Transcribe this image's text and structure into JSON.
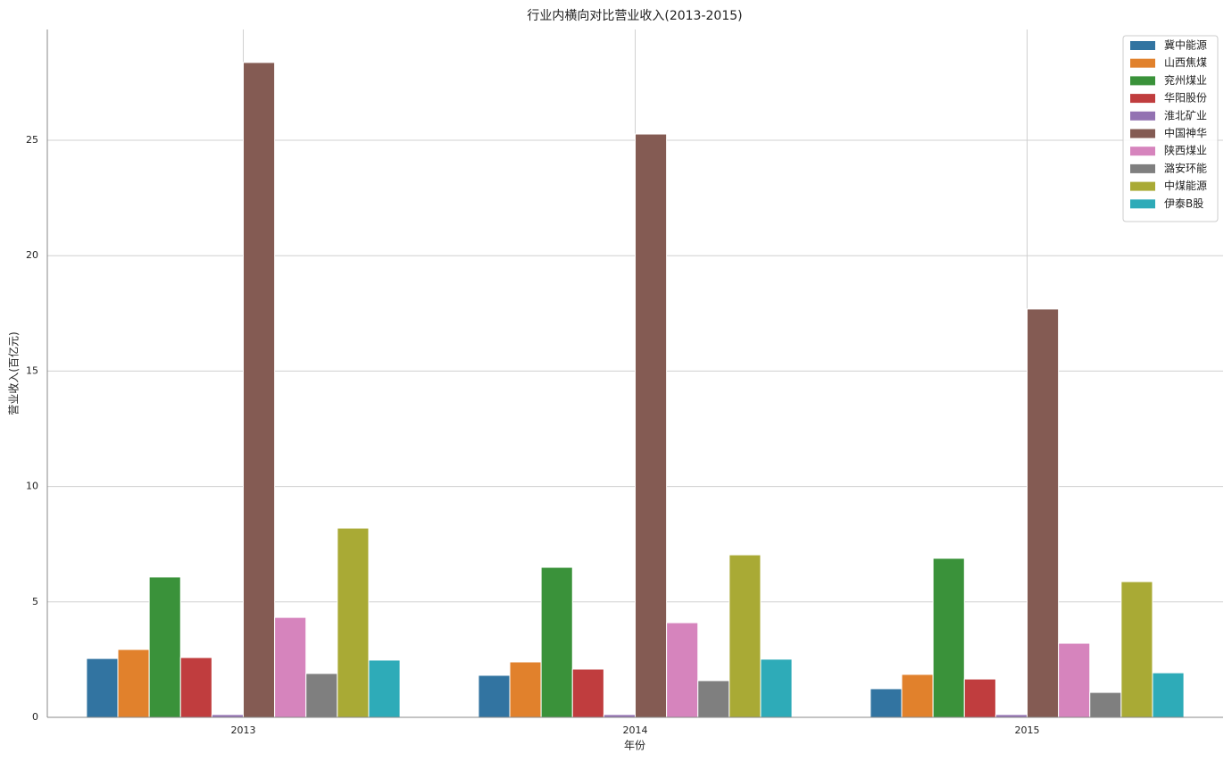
{
  "chart_data": {
    "type": "bar",
    "title": "行业内横向对比营业收入(2013-2015)",
    "x_label": "年份",
    "y_label": "营业收入(百亿元)",
    "categories": [
      "2013",
      "2014",
      "2015"
    ],
    "series": [
      {
        "name": "冀中能源",
        "color": "#3274a1",
        "values": [
          2.55,
          1.82,
          1.24
        ]
      },
      {
        "name": "山西焦煤",
        "color": "#e1812c",
        "values": [
          2.94,
          2.4,
          1.86
        ]
      },
      {
        "name": "兖州煤业",
        "color": "#3a923a",
        "values": [
          6.08,
          6.5,
          6.89
        ]
      },
      {
        "name": "华阳股份",
        "color": "#c03d3e",
        "values": [
          2.59,
          2.09,
          1.66
        ]
      },
      {
        "name": "淮北矿业",
        "color": "#9372b2",
        "values": [
          0.12,
          0.12,
          0.12
        ]
      },
      {
        "name": "中国神华",
        "color": "#845b53",
        "values": [
          28.37,
          25.27,
          17.69
        ]
      },
      {
        "name": "陕西煤业",
        "color": "#d684bd",
        "values": [
          4.33,
          4.1,
          3.21
        ]
      },
      {
        "name": "潞安环能",
        "color": "#7f7f7f",
        "values": [
          1.9,
          1.59,
          1.08
        ]
      },
      {
        "name": "中煤能源",
        "color": "#a9aa35",
        "values": [
          8.2,
          7.04,
          5.88
        ]
      },
      {
        "name": "伊泰B股",
        "color": "#2eabb8",
        "values": [
          2.48,
          2.52,
          1.93
        ]
      }
    ],
    "ylim": [
      0,
      29.8
    ],
    "yticks": [
      0,
      5,
      10,
      15,
      20,
      25
    ],
    "grid": true,
    "legend": "upper right"
  }
}
